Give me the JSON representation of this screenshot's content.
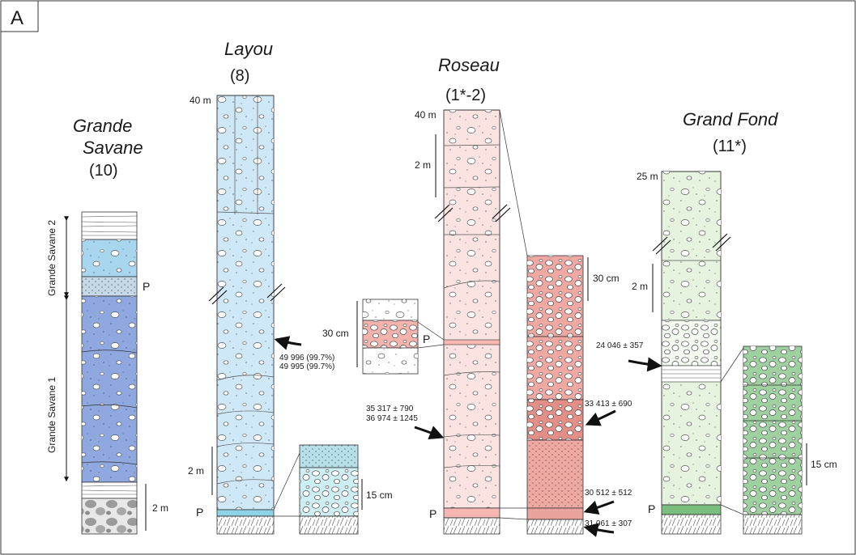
{
  "figure": {
    "panel_label": "A",
    "colors": {
      "grande_savane_upper": "#a9d6ef",
      "grande_savane_lower": "#8fa8e0",
      "layou": "#cfe8f7",
      "layou_detail": "#b8e0ea",
      "roseau": "#fbe3e2",
      "roseau_detail": "#f0a8a3",
      "roseau_insert": "#f4b3ad",
      "grand_fond": "#e5f3df",
      "grand_fond_detail": "#9fd0a0",
      "paleosol_layou": "#8fd3e6",
      "paleosol_roseau": "#f6b7b3",
      "paleosol_grandfond": "#7bbf7f"
    },
    "sections": {
      "grande_savane": {
        "title_line1": "Grande",
        "title_line2": "Savane",
        "number": "(10)",
        "unit_label_upper": "Grande Savane 2",
        "unit_label_lower": "Grande Savane 1",
        "p_label": "P",
        "scale_label": "2 m"
      },
      "layou": {
        "title": "Layou",
        "number": "(8)",
        "top_label": "40 m",
        "scale_label": "2 m",
        "p_label": "P",
        "detail_scale": "15 cm",
        "date1": "49 996 (99.7%)",
        "date2": "49 995 (99.7%)"
      },
      "roseau": {
        "title": "Roseau",
        "number": "(1*-2)",
        "top_label": "40 m",
        "scale_label": "2 m",
        "p_label": "P",
        "insert_scale": "30 cm",
        "insert_p": "P",
        "detail_scale": "30 cm",
        "date_left1": "35 317 ± 790",
        "date_left2": "36 974 ± 1245",
        "date_right_mid": "33 413 ± 690",
        "date_bottom1": "30 512 ± 512",
        "date_bottom2": "31 061 ± 307"
      },
      "grand_fond": {
        "title": "Grand Fond",
        "number": "(11*)",
        "top_label": "25 m",
        "scale_label": "2 m",
        "p_label": "P",
        "detail_scale": "15 cm",
        "date": "24 046 ± 357"
      }
    }
  }
}
